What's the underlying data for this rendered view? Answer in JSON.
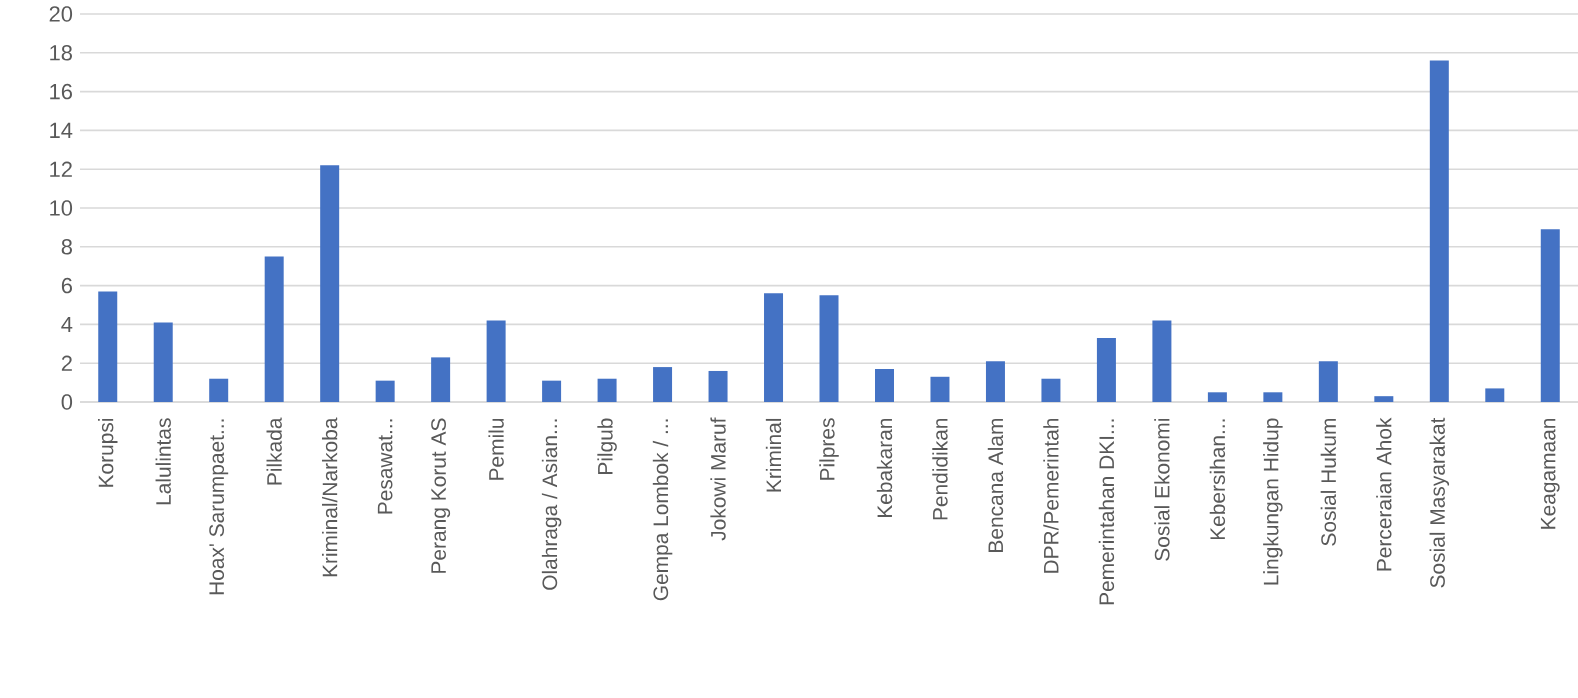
{
  "chart_data": {
    "type": "bar",
    "categories": [
      "Korupsi",
      "Lalulintas",
      "Hoax' Sarumpaet...",
      "Pilkada",
      "Kriminal/Narkoba",
      "Pesawat...",
      "Perang Korut AS",
      "Pemilu",
      "Olahraga / Asian...",
      "Pilgub",
      "Gempa Lombok / ...",
      "Jokowi Maruf",
      "Kriminal",
      "Pilpres",
      "Kebakaran",
      "Pendidikan",
      "Bencana Alam",
      "DPR/Pemerintah",
      "Pemerintahan DKI...",
      "Sosial Ekonomi",
      "Kebersihan...",
      "Lingkungan Hidup",
      "Sosial Hukum",
      "Perceraian Ahok",
      "Sosial Masyarakat",
      null,
      "Keagamaan"
    ],
    "values": [
      5.7,
      4.1,
      1.2,
      7.5,
      12.2,
      1.1,
      2.3,
      4.2,
      1.1,
      1.2,
      1.8,
      1.6,
      5.6,
      5.5,
      1.7,
      1.3,
      2.1,
      1.2,
      3.3,
      4.2,
      0.5,
      0.5,
      2.1,
      0.3,
      17.6,
      0.7,
      8.9
    ],
    "color": "#4472c4",
    "ylim": [
      0,
      20
    ],
    "yticks": [
      0,
      2,
      4,
      6,
      8,
      10,
      12,
      14,
      16,
      18,
      20
    ],
    "grid": "y"
  }
}
